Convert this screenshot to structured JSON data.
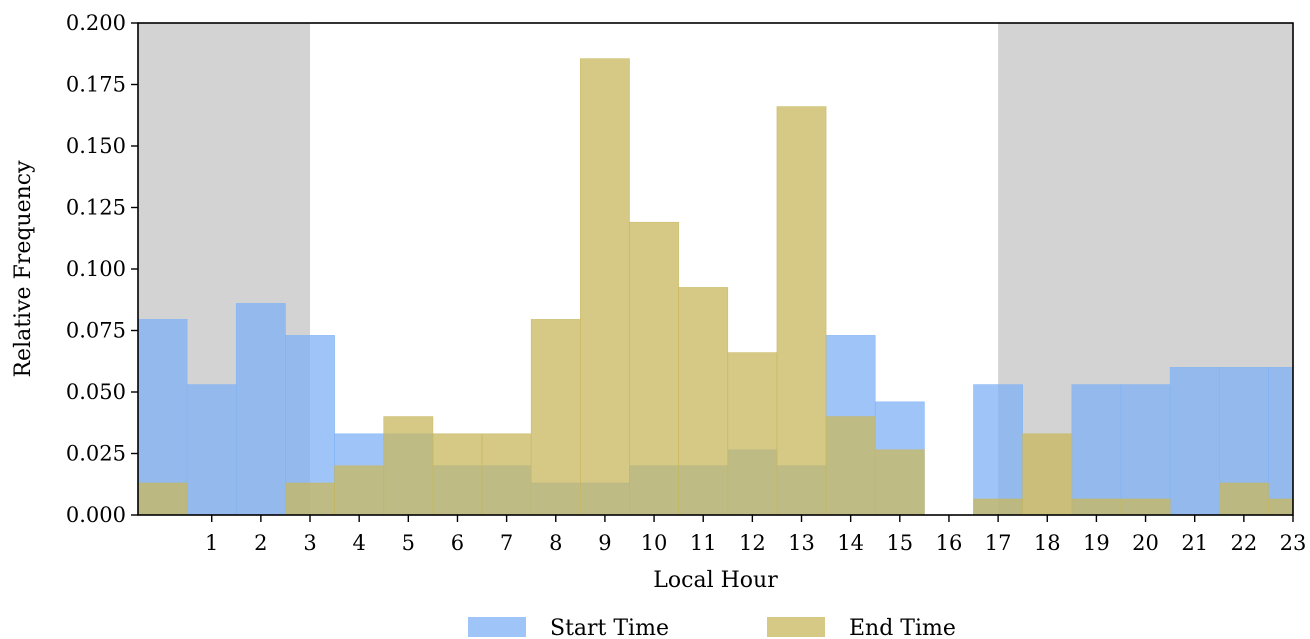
{
  "chart_data": {
    "type": "bar",
    "xlabel": "Local Hour",
    "ylabel": "Relative Frequency",
    "xlim": [
      -0.5,
      23
    ],
    "ylim": [
      0,
      0.2
    ],
    "x_ticks": [
      1,
      2,
      3,
      4,
      5,
      6,
      7,
      8,
      9,
      10,
      11,
      12,
      13,
      14,
      15,
      16,
      17,
      18,
      19,
      20,
      21,
      22,
      23
    ],
    "y_ticks": [
      "0.000",
      "0.025",
      "0.050",
      "0.075",
      "0.100",
      "0.125",
      "0.150",
      "0.175",
      "0.200"
    ],
    "shaded_regions": [
      {
        "from": -0.5,
        "to": 3,
        "color": "#d3d3d3"
      },
      {
        "from": 17,
        "to": 23,
        "color": "#d3d3d3"
      }
    ],
    "legend_position": "bottom",
    "x": [
      0,
      1,
      2,
      3,
      4,
      5,
      6,
      7,
      8,
      9,
      10,
      11,
      12,
      13,
      14,
      15,
      16,
      17,
      18,
      19,
      20,
      21,
      22,
      23
    ],
    "series": [
      {
        "name": "Start Time",
        "color": "#7fb2f5",
        "values": [
          0.0795,
          0.053,
          0.086,
          0.073,
          0.033,
          0.033,
          0.02,
          0.02,
          0.013,
          0.013,
          0.02,
          0.02,
          0.0265,
          0.02,
          0.073,
          0.046,
          0.0,
          0.053,
          0.0,
          0.053,
          0.053,
          0.06,
          0.06,
          0.06
        ]
      },
      {
        "name": "End Time",
        "color": "#c8b75e",
        "values": [
          0.013,
          0.0,
          0.0,
          0.013,
          0.02,
          0.04,
          0.033,
          0.033,
          0.0795,
          0.1855,
          0.119,
          0.0925,
          0.066,
          0.166,
          0.04,
          0.0265,
          0.0,
          0.0065,
          0.033,
          0.0065,
          0.0065,
          0.0,
          0.013,
          0.0065
        ]
      }
    ]
  }
}
